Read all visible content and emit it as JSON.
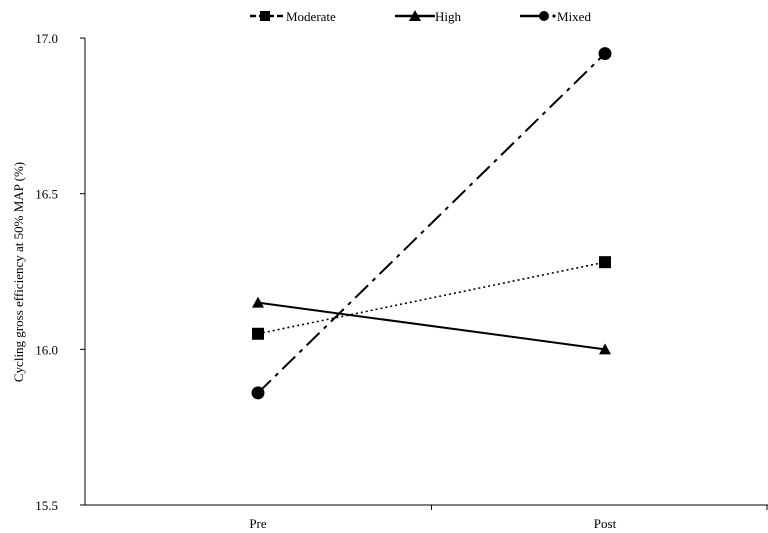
{
  "chart_data": {
    "type": "line",
    "categories": [
      "Pre",
      "Post"
    ],
    "ylabel": "Cycling gross efficiency at 50% MAP  (%)",
    "xlabel": "",
    "ylim": [
      15.5,
      17.0
    ],
    "yticks": [
      "15.5",
      "16.0",
      "16.5",
      "17.0"
    ],
    "grid": false,
    "legend_position": "top",
    "series": [
      {
        "name": "Moderate",
        "values": [
          16.05,
          16.28
        ],
        "marker": "square",
        "line_style": "dotted",
        "legend_line_style": "dashed"
      },
      {
        "name": "High",
        "values": [
          16.15,
          16.0
        ],
        "marker": "triangle",
        "line_style": "solid",
        "legend_line_style": "solid"
      },
      {
        "name": "Mixed",
        "values": [
          15.86,
          16.95
        ],
        "marker": "circle",
        "line_style": "dash-dot",
        "legend_line_style": "dash-dot"
      }
    ]
  }
}
